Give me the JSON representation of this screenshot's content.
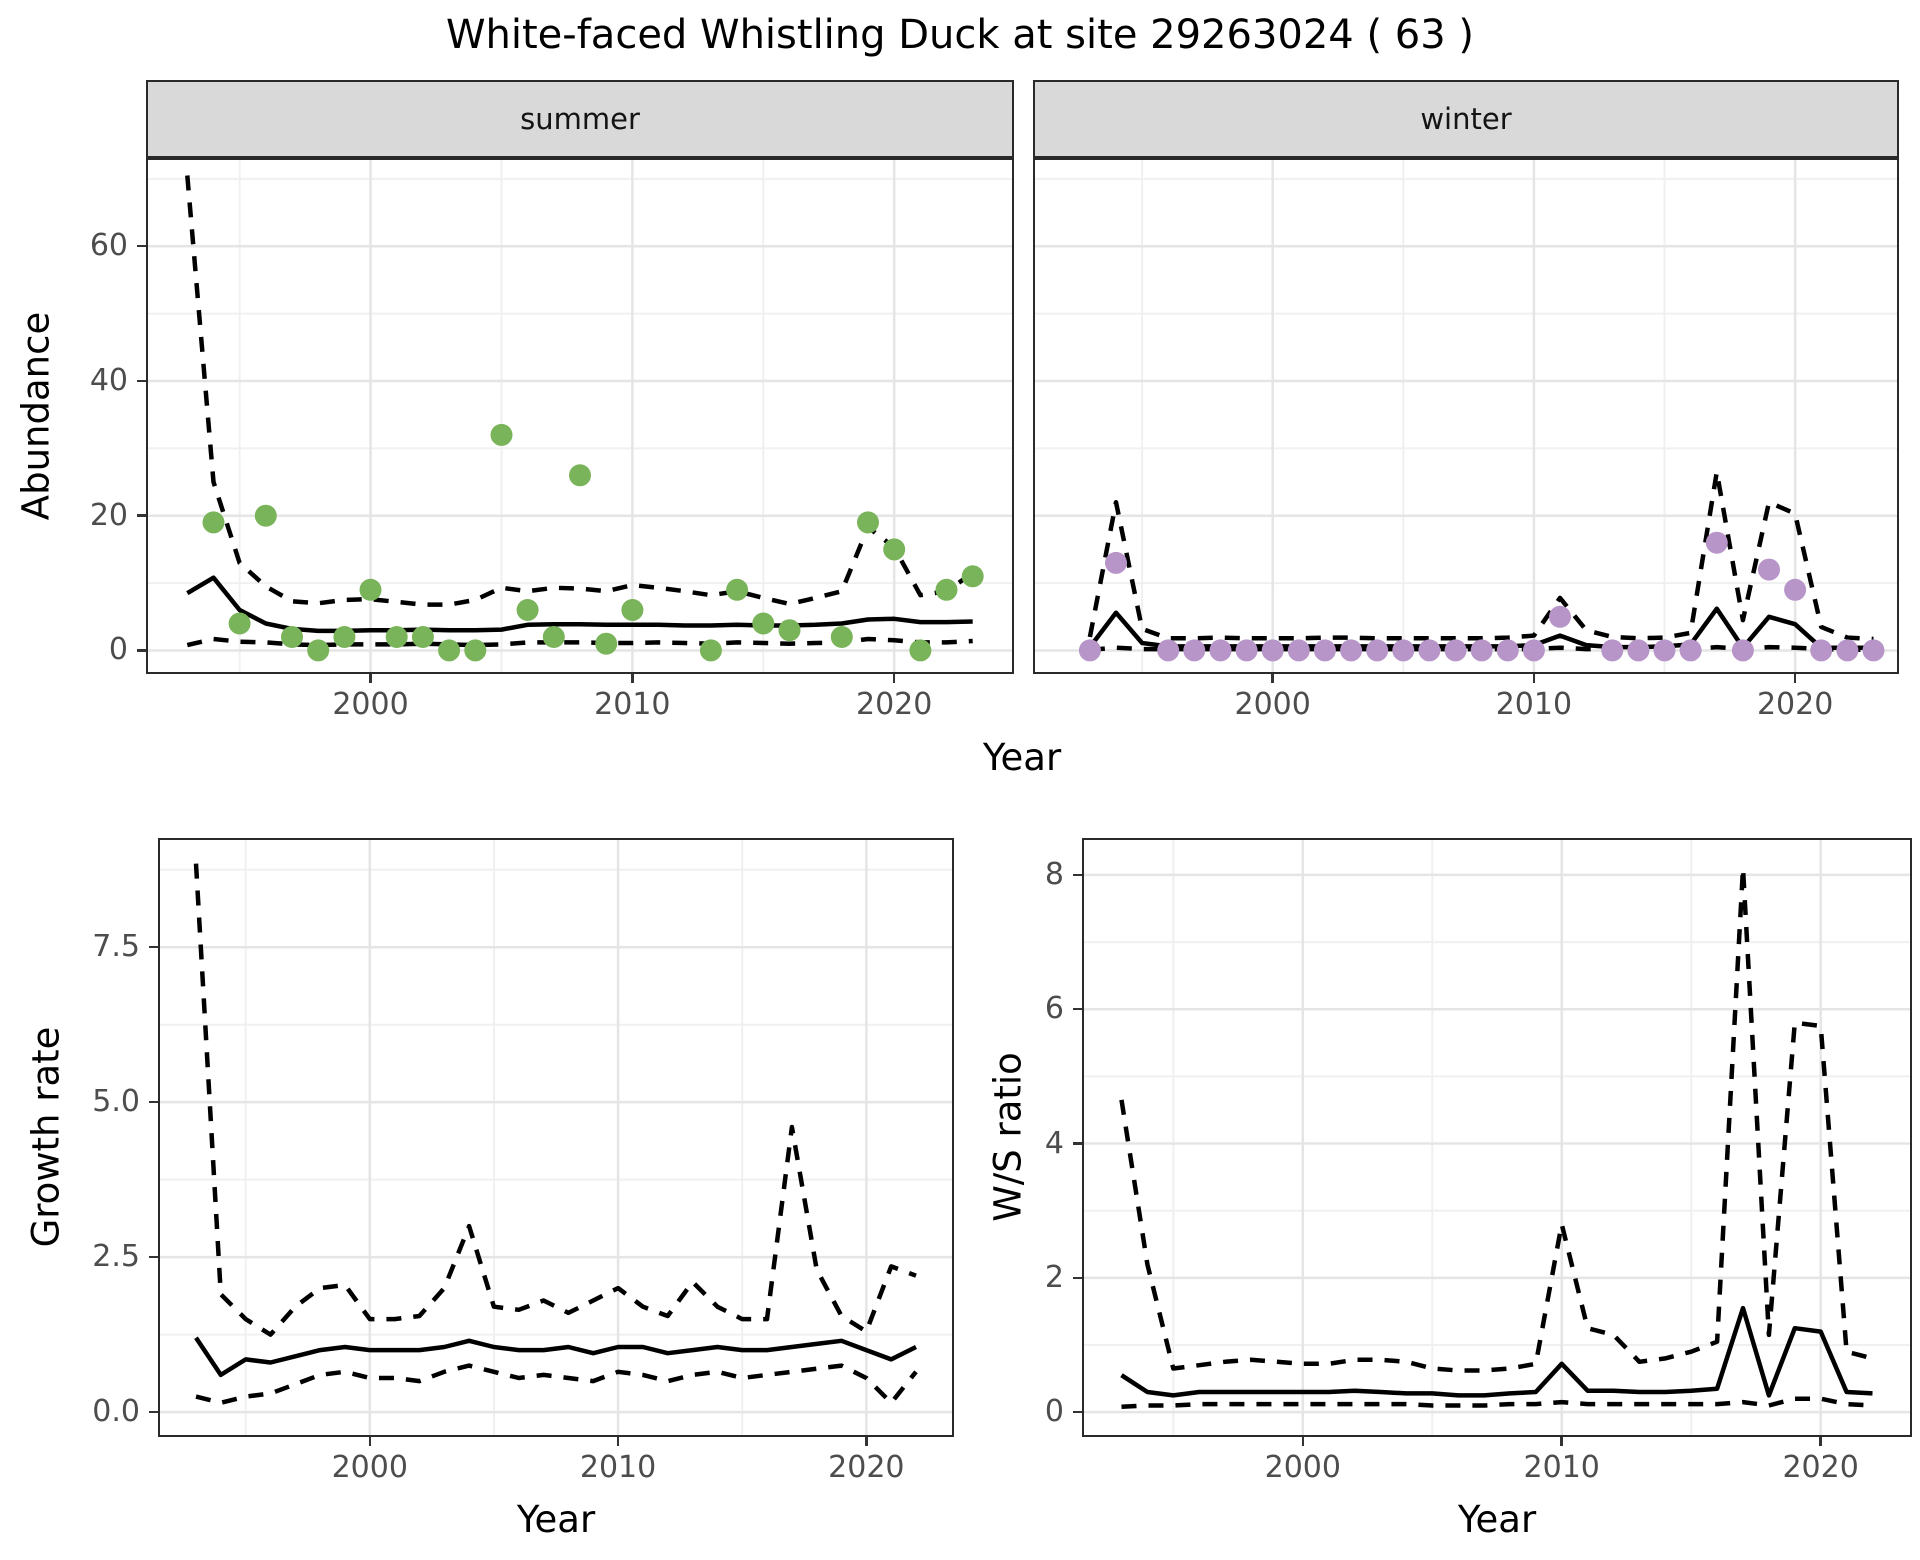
{
  "title": "White-faced Whistling Duck at site 29263024 ( 63 )",
  "facets": [
    {
      "label": "summer"
    },
    {
      "label": "winter"
    }
  ],
  "labels": {
    "year": "Year",
    "abundance": "Abundance",
    "growth": "Growth rate",
    "ws": "W/S ratio"
  },
  "colors": {
    "summer_point": "#7ab45a",
    "winter_point": "#b795c8",
    "line": "#000000",
    "strip_bg": "#d9d9d9",
    "panel_border": "#2a2a2a",
    "grid_major": "#e5e5e5",
    "grid_minor": "#f0f0f0",
    "tick_text": "#4d4d4d"
  },
  "chart_data": [
    {
      "id": "abundance-summer",
      "type": "scatter",
      "facet": "summer",
      "xlabel": "Year",
      "ylabel": "Abundance",
      "xlim": [
        1991.5,
        2024.5
      ],
      "ylim": [
        -3.2,
        72.8
      ],
      "xticks": [
        2000,
        2010,
        2020
      ],
      "xtick_labels": [
        "2000",
        "2010",
        "2020"
      ],
      "x_minor": [
        1995,
        2005,
        2015
      ],
      "yticks": [
        0,
        20,
        40,
        60
      ],
      "ytick_labels": [
        "0",
        "20",
        "40",
        "60"
      ],
      "y_minor": [
        10,
        30,
        50,
        70
      ],
      "show_y_axis": true,
      "point_color": "#7ab45a",
      "x": [
        1993,
        1994,
        1995,
        1996,
        1997,
        1998,
        1999,
        2000,
        2001,
        2002,
        2003,
        2004,
        2005,
        2006,
        2007,
        2008,
        2009,
        2010,
        2011,
        2012,
        2013,
        2014,
        2015,
        2016,
        2017,
        2018,
        2019,
        2020,
        2021,
        2022,
        2023
      ],
      "series": {
        "upper_ci": [
          70.5,
          25,
          13,
          9.5,
          7.3,
          7.0,
          7.5,
          7.6,
          7.2,
          6.8,
          6.8,
          7.5,
          9.3,
          8.8,
          9.3,
          9.2,
          8.8,
          9.7,
          9.3,
          8.8,
          8.2,
          8.8,
          7.8,
          6.9,
          7.8,
          8.8,
          18.3,
          15.3,
          8.2,
          8.8,
          11.5
        ],
        "median": [
          8.5,
          10.8,
          6.0,
          4.0,
          3.2,
          2.9,
          2.9,
          3.0,
          3.0,
          3.1,
          3.0,
          3.0,
          3.1,
          3.8,
          3.9,
          3.9,
          3.8,
          3.8,
          3.8,
          3.7,
          3.7,
          3.8,
          3.7,
          3.7,
          3.8,
          4.0,
          4.6,
          4.7,
          4.2,
          4.2,
          4.3
        ],
        "lower_ci": [
          0.8,
          1.7,
          1.3,
          1.2,
          0.9,
          0.8,
          0.9,
          0.9,
          0.9,
          1.0,
          0.9,
          0.8,
          0.9,
          1.2,
          1.2,
          1.2,
          1.1,
          1.1,
          1.2,
          1.1,
          1.0,
          1.2,
          1.1,
          1.0,
          1.1,
          1.2,
          1.7,
          1.5,
          1.2,
          1.2,
          1.4
        ]
      },
      "points": {
        "x": [
          1994,
          1995,
          1996,
          1997,
          1998,
          1999,
          2000,
          2001,
          2002,
          2003,
          2004,
          2005,
          2006,
          2007,
          2008,
          2009,
          2010,
          2013,
          2014,
          2015,
          2016,
          2018,
          2019,
          2020,
          2021,
          2022,
          2023
        ],
        "y": [
          19,
          4,
          20,
          2,
          0,
          2,
          9,
          2,
          2,
          0,
          0,
          32,
          6,
          2,
          26,
          1,
          6,
          0,
          9,
          4,
          3,
          2,
          19,
          15,
          0,
          9,
          11
        ]
      }
    },
    {
      "id": "abundance-winter",
      "type": "scatter",
      "facet": "winter",
      "xlabel": "Year",
      "ylabel": "Abundance",
      "xlim": [
        1990.9,
        2023.9
      ],
      "xticks": [
        2000,
        2010,
        2020
      ],
      "xtick_labels": [
        "2000",
        "2010",
        "2020"
      ],
      "x_minor": [
        1995,
        2005,
        2015
      ],
      "ylim": [
        -3.2,
        72.8
      ],
      "yticks": [
        0,
        20,
        40,
        60
      ],
      "ytick_labels": [
        "0",
        "20",
        "40",
        "60"
      ],
      "y_minor": [
        10,
        30,
        50,
        70
      ],
      "show_y_axis": false,
      "point_color": "#b795c8",
      "x": [
        1993,
        1994,
        1995,
        1996,
        1997,
        1998,
        1999,
        2000,
        2001,
        2002,
        2003,
        2004,
        2005,
        2006,
        2007,
        2008,
        2009,
        2010,
        2011,
        2012,
        2013,
        2014,
        2015,
        2016,
        2017,
        2018,
        2019,
        2020,
        2021,
        2022,
        2023
      ],
      "series": {
        "upper_ci": [
          2.0,
          22,
          3.2,
          1.8,
          1.8,
          1.9,
          1.8,
          1.8,
          1.8,
          1.9,
          1.9,
          1.8,
          1.8,
          1.8,
          1.8,
          1.8,
          1.9,
          2.2,
          7.8,
          3.0,
          2.0,
          1.8,
          1.9,
          2.6,
          26.5,
          4.5,
          22,
          20.3,
          3.5,
          1.9,
          1.7
        ],
        "median": [
          0.5,
          5.6,
          1.1,
          0.6,
          0.6,
          0.6,
          0.6,
          0.6,
          0.6,
          0.6,
          0.6,
          0.6,
          0.6,
          0.6,
          0.6,
          0.6,
          0.6,
          0.8,
          2.2,
          0.8,
          0.5,
          0.5,
          0.6,
          0.9,
          6.2,
          0.4,
          5.0,
          3.9,
          0.4,
          0.4,
          0.4
        ],
        "lower_ci": [
          0.1,
          0.4,
          0.2,
          0.2,
          0.2,
          0.2,
          0.2,
          0.2,
          0.2,
          0.2,
          0.2,
          0.2,
          0.2,
          0.2,
          0.2,
          0.2,
          0.2,
          0.2,
          0.4,
          0.2,
          0.2,
          0.2,
          0.2,
          0.2,
          0.5,
          0.2,
          0.5,
          0.4,
          0.2,
          0.1,
          0.1
        ]
      },
      "points": {
        "x": [
          1993,
          1994,
          1996,
          1997,
          1998,
          1999,
          2000,
          2001,
          2002,
          2003,
          2004,
          2005,
          2006,
          2007,
          2008,
          2009,
          2010,
          2011,
          2013,
          2014,
          2015,
          2016,
          2017,
          2018,
          2019,
          2020,
          2021,
          2022,
          2023
        ],
        "y": [
          0,
          13,
          0,
          0,
          0,
          0,
          0,
          0,
          0,
          0,
          0,
          0,
          0,
          0,
          0,
          0,
          0,
          5,
          0,
          0,
          0,
          0,
          16,
          0,
          12,
          9,
          0,
          0,
          0
        ]
      }
    },
    {
      "id": "growth-rate",
      "type": "line",
      "xlabel": "Year",
      "ylabel": "Growth rate",
      "xlim": [
        1991.55,
        2023.45
      ],
      "xticks": [
        2000,
        2010,
        2020
      ],
      "xtick_labels": [
        "2000",
        "2010",
        "2020"
      ],
      "x_minor": [
        1995,
        2005,
        2015
      ],
      "ylim": [
        -0.37,
        9.23
      ],
      "yticks": [
        0,
        2.5,
        5,
        7.5
      ],
      "ytick_labels": [
        "0.0",
        "2.5",
        "5.0",
        "7.5"
      ],
      "y_minor": [
        1.25,
        3.75,
        6.25,
        8.75
      ],
      "show_y_axis": true,
      "x": [
        1993,
        1994,
        1995,
        1996,
        1997,
        1998,
        1999,
        2000,
        2001,
        2002,
        2003,
        2004,
        2005,
        2006,
        2007,
        2008,
        2009,
        2010,
        2011,
        2012,
        2013,
        2014,
        2015,
        2016,
        2017,
        2018,
        2019,
        2020,
        2021,
        2022
      ],
      "series": {
        "upper_ci": [
          8.85,
          1.9,
          1.5,
          1.25,
          1.7,
          2.0,
          2.05,
          1.5,
          1.5,
          1.55,
          2.0,
          3.0,
          1.7,
          1.65,
          1.8,
          1.6,
          1.8,
          2.0,
          1.7,
          1.55,
          2.1,
          1.7,
          1.5,
          1.5,
          4.6,
          2.3,
          1.55,
          1.3,
          2.35,
          2.2
        ],
        "median": [
          1.2,
          0.6,
          0.85,
          0.8,
          0.9,
          1.0,
          1.05,
          1.0,
          1.0,
          1.0,
          1.05,
          1.15,
          1.05,
          1.0,
          1.0,
          1.05,
          0.95,
          1.05,
          1.05,
          0.95,
          1.0,
          1.05,
          1.0,
          1.0,
          1.05,
          1.1,
          1.15,
          1.0,
          0.85,
          1.05
        ],
        "lower_ci": [
          0.25,
          0.15,
          0.25,
          0.3,
          0.45,
          0.6,
          0.65,
          0.55,
          0.55,
          0.5,
          0.65,
          0.75,
          0.65,
          0.55,
          0.6,
          0.55,
          0.5,
          0.65,
          0.6,
          0.5,
          0.6,
          0.65,
          0.55,
          0.6,
          0.65,
          0.7,
          0.75,
          0.55,
          0.15,
          0.65
        ]
      }
    },
    {
      "id": "ws-ratio",
      "type": "line",
      "xlabel": "Year",
      "ylabel": "W/S ratio",
      "xlim": [
        1991.55,
        2023.45
      ],
      "xticks": [
        2000,
        2010,
        2020
      ],
      "xtick_labels": [
        "2000",
        "2010",
        "2020"
      ],
      "x_minor": [
        1995,
        2005,
        2015
      ],
      "ylim": [
        -0.34,
        8.52
      ],
      "yticks": [
        0,
        2,
        4,
        6,
        8
      ],
      "ytick_labels": [
        "0",
        "2",
        "4",
        "6",
        "8"
      ],
      "y_minor": [
        1,
        3,
        5,
        7
      ],
      "show_y_axis": true,
      "x": [
        1993,
        1994,
        1995,
        1996,
        1997,
        1998,
        1999,
        2000,
        2001,
        2002,
        2003,
        2004,
        2005,
        2006,
        2007,
        2008,
        2009,
        2010,
        2011,
        2012,
        2013,
        2014,
        2015,
        2016,
        2017,
        2018,
        2019,
        2020,
        2021,
        2022
      ],
      "series": {
        "upper_ci": [
          4.65,
          2.2,
          0.65,
          0.7,
          0.75,
          0.78,
          0.75,
          0.72,
          0.72,
          0.78,
          0.78,
          0.75,
          0.65,
          0.62,
          0.62,
          0.65,
          0.72,
          2.8,
          1.25,
          1.15,
          0.75,
          0.8,
          0.9,
          1.05,
          8.1,
          1.15,
          5.8,
          5.75,
          0.9,
          0.8
        ],
        "median": [
          0.55,
          0.3,
          0.25,
          0.3,
          0.3,
          0.3,
          0.3,
          0.3,
          0.3,
          0.32,
          0.3,
          0.28,
          0.28,
          0.25,
          0.25,
          0.28,
          0.3,
          0.72,
          0.32,
          0.32,
          0.3,
          0.3,
          0.32,
          0.35,
          1.55,
          0.25,
          1.25,
          1.2,
          0.3,
          0.28
        ],
        "lower_ci": [
          0.08,
          0.1,
          0.1,
          0.12,
          0.12,
          0.12,
          0.12,
          0.12,
          0.12,
          0.12,
          0.12,
          0.12,
          0.1,
          0.1,
          0.1,
          0.12,
          0.12,
          0.15,
          0.12,
          0.12,
          0.12,
          0.12,
          0.12,
          0.12,
          0.15,
          0.1,
          0.2,
          0.2,
          0.12,
          0.1
        ]
      }
    }
  ]
}
